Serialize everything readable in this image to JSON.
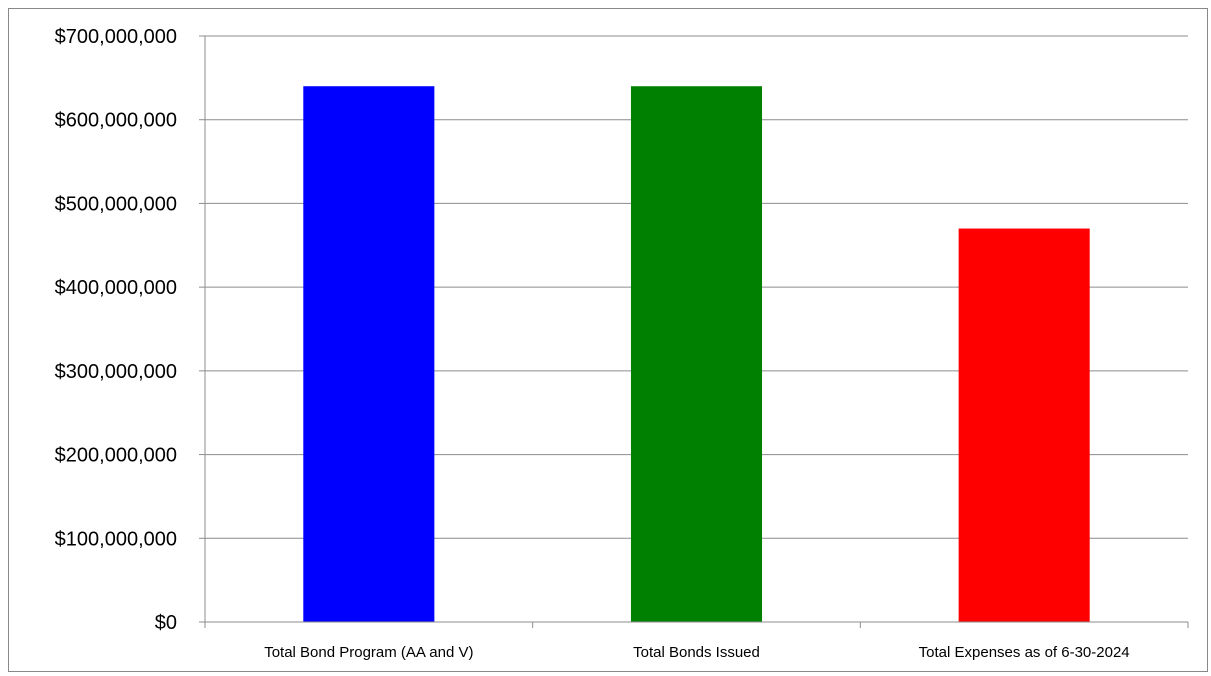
{
  "chart_data": {
    "type": "bar",
    "title": "",
    "xlabel": "",
    "ylabel": "",
    "categories": [
      "Total Bond Program (AA and V)",
      "Total Bonds Issued",
      "Total Expenses as of 6-30-2024"
    ],
    "values": [
      640000000,
      640000000,
      470000000
    ],
    "bar_colors": [
      "#0000ff",
      "#008000",
      "#ff0000"
    ],
    "ylim": [
      0,
      700000000
    ],
    "yticks": [
      0,
      100000000,
      200000000,
      300000000,
      400000000,
      500000000,
      600000000,
      700000000
    ],
    "ytick_labels": [
      "$0",
      "$100,000,000",
      "$200,000,000",
      "$300,000,000",
      "$400,000,000",
      "$500,000,000",
      "$600,000,000",
      "$700,000,000"
    ],
    "grid": true,
    "legend": "none"
  }
}
